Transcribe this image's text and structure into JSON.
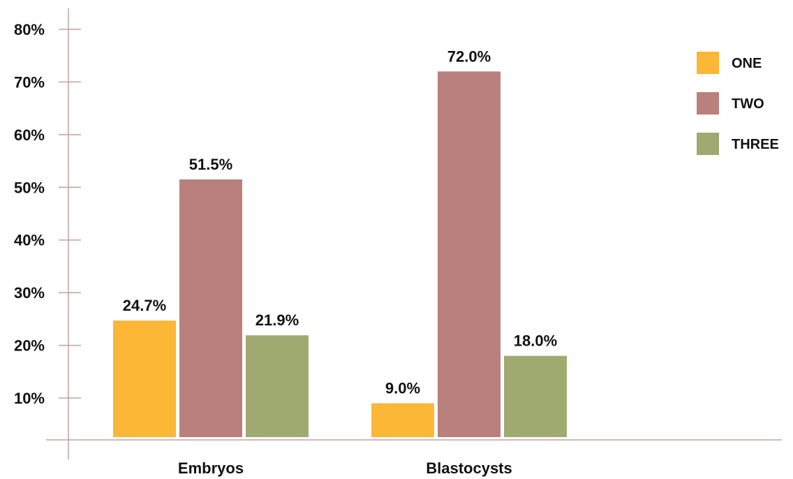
{
  "chart_data": {
    "type": "bar",
    "title": "",
    "xlabel": "",
    "ylabel": "",
    "categories": [
      "Embryos",
      "Blastocysts"
    ],
    "series": [
      {
        "name": "ONE",
        "values": [
          24.7,
          9.0
        ],
        "labels": [
          "24.7%",
          "9.0%"
        ]
      },
      {
        "name": "TWO",
        "values": [
          51.5,
          72.0
        ],
        "labels": [
          "51.5%",
          "72.0%"
        ]
      },
      {
        "name": "THREE",
        "values": [
          21.9,
          18.0
        ],
        "labels": [
          "21.9%",
          "18.0%"
        ]
      }
    ],
    "yticks": [
      {
        "value": 10,
        "label": "10%"
      },
      {
        "value": 20,
        "label": "20%"
      },
      {
        "value": 30,
        "label": "30%"
      },
      {
        "value": 40,
        "label": "40%"
      },
      {
        "value": 50,
        "label": "50%"
      },
      {
        "value": 60,
        "label": "60%"
      },
      {
        "value": 70,
        "label": "70%"
      },
      {
        "value": 80,
        "label": "80%"
      }
    ],
    "ylim": [
      0,
      80
    ],
    "grid": false,
    "legend_position": "top-right",
    "colors": {
      "ONE": "#FBB735",
      "TWO": "#B9807D",
      "THREE": "#9FAA70",
      "axis": "#C4A0A0"
    }
  }
}
